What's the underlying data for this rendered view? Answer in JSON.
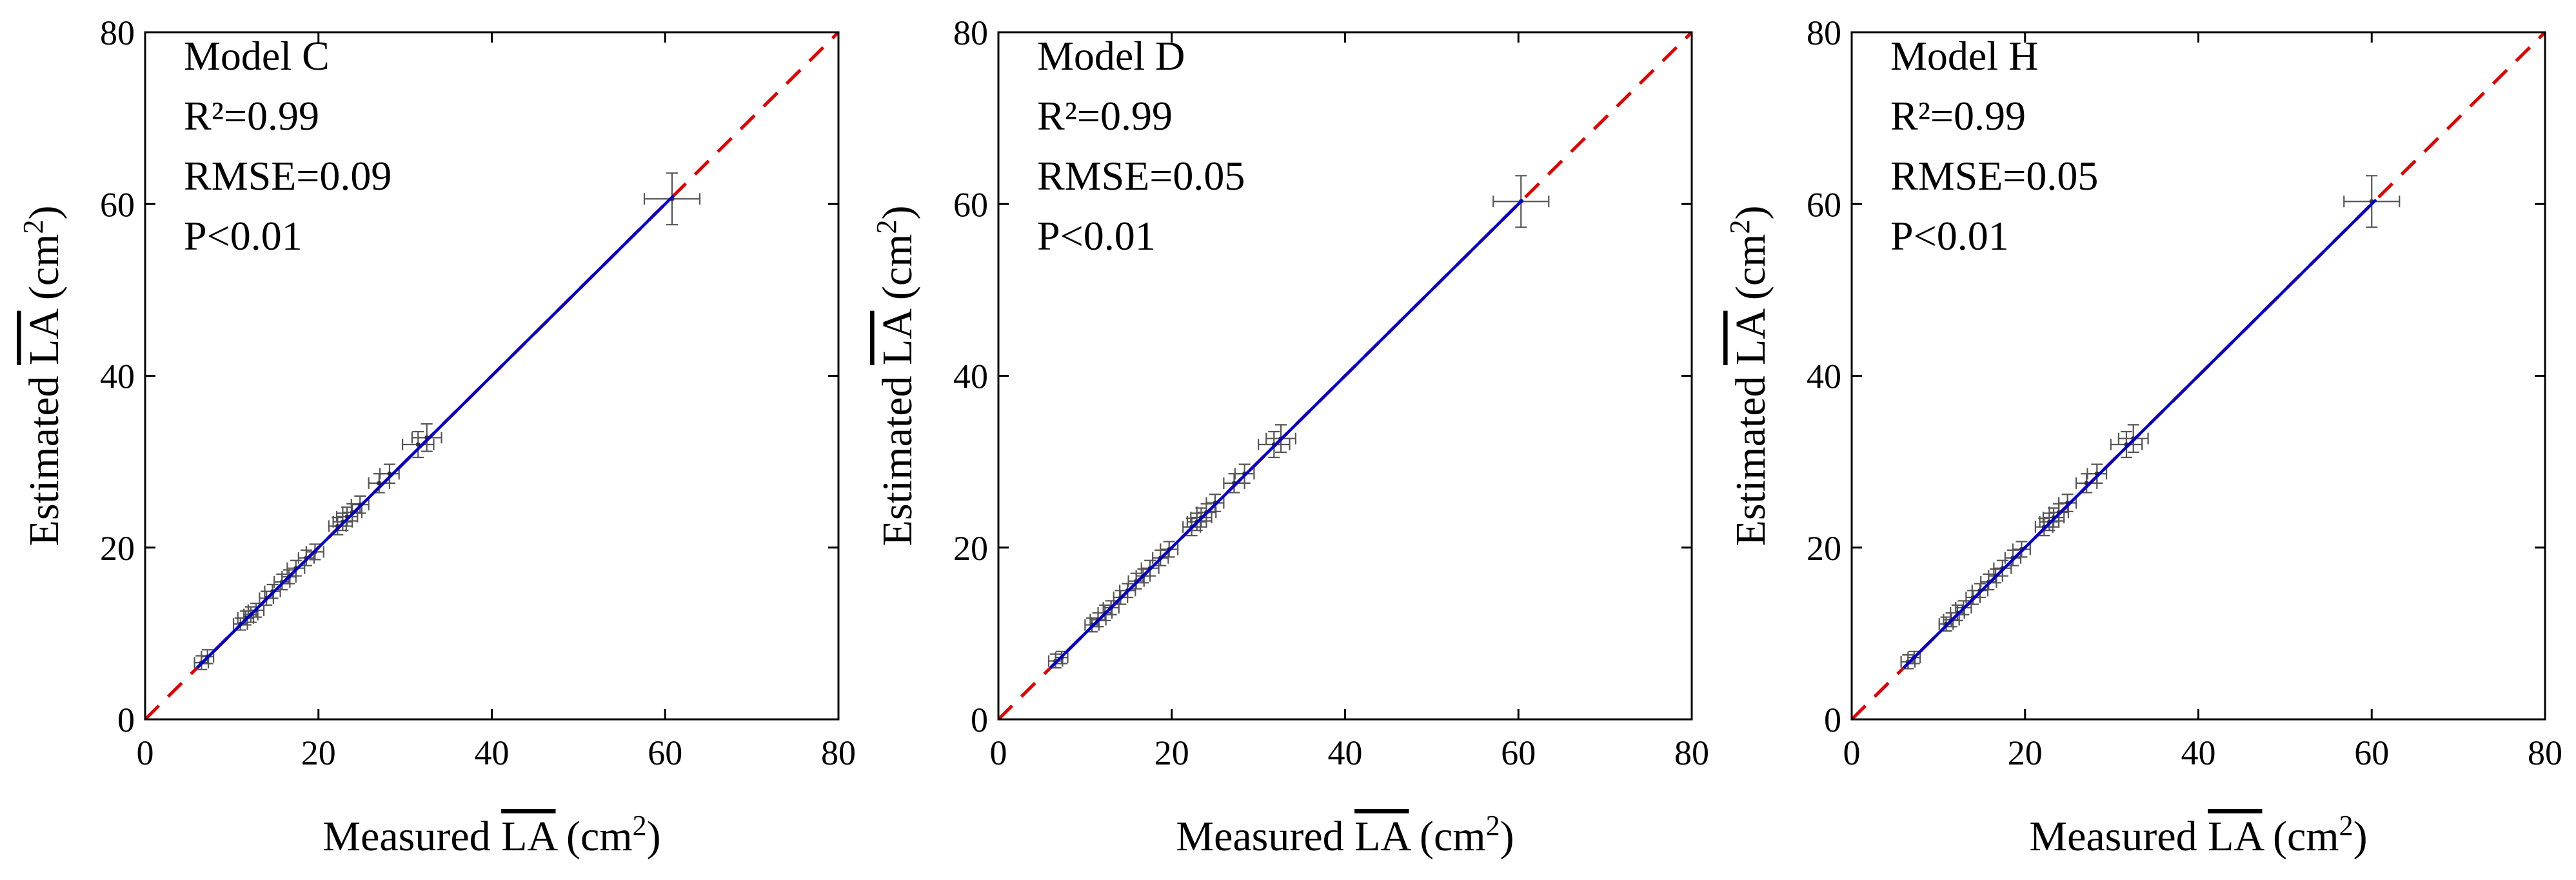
{
  "chart_data": [
    {
      "type": "scatter",
      "panel": "left",
      "annotations": [
        "Model C",
        "R²=0.99",
        "RMSE=0.09",
        "P<0.01"
      ],
      "xlabel": {
        "main": "Measured ",
        "overlined": "LA",
        "unit_pre": " (cm",
        "unit_sup": "2",
        "unit_post": ")"
      },
      "ylabel": {
        "main": "Estimated ",
        "overlined": "LA",
        "unit_pre": " (cm",
        "unit_sup": "2",
        "unit_post": ")"
      },
      "xlim": [
        0,
        80
      ],
      "ylim": [
        0,
        80
      ],
      "xticks": [
        0,
        20,
        40,
        60,
        80
      ],
      "yticks": [
        0,
        20,
        40,
        60,
        80
      ],
      "tick_labels": [
        "0",
        "20",
        "40",
        "60",
        "80"
      ],
      "reference_line": {
        "style": "dashed",
        "color": "#e00000",
        "from": [
          0,
          0
        ],
        "to": [
          80,
          80
        ]
      },
      "fit_line": {
        "color": "#0000cc",
        "from": [
          6,
          6
        ],
        "to": [
          61,
          61
        ]
      },
      "points": [
        {
          "x": 6.5,
          "y": 6.6,
          "xerr": 0.8,
          "yerr": 0.8
        },
        {
          "x": 7.2,
          "y": 7.3,
          "xerr": 0.7,
          "yerr": 0.8
        },
        {
          "x": 11.0,
          "y": 11.1,
          "xerr": 0.8,
          "yerr": 0.7
        },
        {
          "x": 11.6,
          "y": 11.8,
          "xerr": 0.9,
          "yerr": 0.8
        },
        {
          "x": 12.2,
          "y": 12.2,
          "xerr": 0.8,
          "yerr": 0.9
        },
        {
          "x": 12.8,
          "y": 12.7,
          "xerr": 0.9,
          "yerr": 0.8
        },
        {
          "x": 14.0,
          "y": 14.1,
          "xerr": 0.8,
          "yerr": 0.8
        },
        {
          "x": 14.7,
          "y": 14.9,
          "xerr": 0.9,
          "yerr": 0.8
        },
        {
          "x": 15.8,
          "y": 16.0,
          "xerr": 0.9,
          "yerr": 0.9
        },
        {
          "x": 16.6,
          "y": 16.6,
          "xerr": 0.8,
          "yerr": 0.8
        },
        {
          "x": 17.4,
          "y": 17.6,
          "xerr": 1.0,
          "yerr": 0.9
        },
        {
          "x": 18.6,
          "y": 18.8,
          "xerr": 0.9,
          "yerr": 0.9
        },
        {
          "x": 19.6,
          "y": 19.5,
          "xerr": 1.0,
          "yerr": 0.9
        },
        {
          "x": 22.2,
          "y": 22.5,
          "xerr": 1.0,
          "yerr": 1.0
        },
        {
          "x": 22.8,
          "y": 23.0,
          "xerr": 1.1,
          "yerr": 1.0
        },
        {
          "x": 23.3,
          "y": 23.6,
          "xerr": 1.2,
          "yerr": 1.1
        },
        {
          "x": 23.9,
          "y": 24.1,
          "xerr": 1.1,
          "yerr": 1.0
        },
        {
          "x": 24.8,
          "y": 25.0,
          "xerr": 1.0,
          "yerr": 1.0
        },
        {
          "x": 27.0,
          "y": 27.5,
          "xerr": 1.2,
          "yerr": 1.1
        },
        {
          "x": 28.2,
          "y": 28.6,
          "xerr": 1.1,
          "yerr": 1.1
        },
        {
          "x": 31.5,
          "y": 32.0,
          "xerr": 1.8,
          "yerr": 1.5
        },
        {
          "x": 32.5,
          "y": 32.8,
          "xerr": 1.7,
          "yerr": 1.6
        },
        {
          "x": 60.8,
          "y": 60.6,
          "xerr": 3.2,
          "yerr": 3.0
        }
      ]
    },
    {
      "type": "scatter",
      "panel": "middle",
      "annotations": [
        "Model D",
        "R²=0.99",
        "RMSE=0.05",
        "P<0.01"
      ],
      "xlabel": {
        "main": "Measured ",
        "overlined": "LA",
        "unit_pre": " (cm",
        "unit_sup": "2",
        "unit_post": ")"
      },
      "ylabel": {
        "main": "Estimated ",
        "overlined": "LA",
        "unit_pre": " (cm",
        "unit_sup": "2",
        "unit_post": ")"
      },
      "xlim": [
        0,
        80
      ],
      "ylim": [
        0,
        80
      ],
      "xticks": [
        0,
        20,
        40,
        60,
        80
      ],
      "yticks": [
        0,
        20,
        40,
        60,
        80
      ],
      "tick_labels": [
        "0",
        "20",
        "40",
        "60",
        "80"
      ],
      "reference_line": {
        "style": "dashed",
        "color": "#e00000",
        "from": [
          0,
          0
        ],
        "to": [
          80,
          80
        ]
      },
      "fit_line": {
        "color": "#0000cc",
        "from": [
          6,
          6
        ],
        "to": [
          60.5,
          60.5
        ]
      },
      "points": [
        {
          "x": 6.6,
          "y": 6.8,
          "xerr": 0.8,
          "yerr": 0.8
        },
        {
          "x": 7.3,
          "y": 7.2,
          "xerr": 0.7,
          "yerr": 0.7
        },
        {
          "x": 10.8,
          "y": 11.0,
          "xerr": 0.8,
          "yerr": 0.8
        },
        {
          "x": 11.5,
          "y": 11.6,
          "xerr": 0.9,
          "yerr": 0.8
        },
        {
          "x": 12.3,
          "y": 12.4,
          "xerr": 0.8,
          "yerr": 0.9
        },
        {
          "x": 13.0,
          "y": 13.0,
          "xerr": 0.9,
          "yerr": 0.8
        },
        {
          "x": 14.1,
          "y": 14.2,
          "xerr": 0.8,
          "yerr": 0.8
        },
        {
          "x": 14.9,
          "y": 15.0,
          "xerr": 0.9,
          "yerr": 0.8
        },
        {
          "x": 15.9,
          "y": 16.1,
          "xerr": 0.9,
          "yerr": 0.9
        },
        {
          "x": 16.7,
          "y": 16.7,
          "xerr": 0.8,
          "yerr": 0.8
        },
        {
          "x": 17.5,
          "y": 17.6,
          "xerr": 1.0,
          "yerr": 0.9
        },
        {
          "x": 18.7,
          "y": 18.8,
          "xerr": 0.9,
          "yerr": 0.9
        },
        {
          "x": 19.7,
          "y": 19.8,
          "xerr": 1.0,
          "yerr": 0.9
        },
        {
          "x": 22.3,
          "y": 22.4,
          "xerr": 1.0,
          "yerr": 1.0
        },
        {
          "x": 22.9,
          "y": 23.0,
          "xerr": 1.1,
          "yerr": 1.0
        },
        {
          "x": 23.4,
          "y": 23.5,
          "xerr": 1.2,
          "yerr": 1.1
        },
        {
          "x": 24.0,
          "y": 24.1,
          "xerr": 1.1,
          "yerr": 1.0
        },
        {
          "x": 25.0,
          "y": 25.2,
          "xerr": 1.0,
          "yerr": 1.0
        },
        {
          "x": 27.2,
          "y": 27.5,
          "xerr": 1.2,
          "yerr": 1.1
        },
        {
          "x": 28.4,
          "y": 28.6,
          "xerr": 1.1,
          "yerr": 1.1
        },
        {
          "x": 31.8,
          "y": 32.0,
          "xerr": 1.8,
          "yerr": 1.5
        },
        {
          "x": 32.6,
          "y": 32.7,
          "xerr": 1.7,
          "yerr": 1.6
        },
        {
          "x": 60.3,
          "y": 60.3,
          "xerr": 3.2,
          "yerr": 3.0
        }
      ]
    },
    {
      "type": "scatter",
      "panel": "right",
      "annotations": [
        "Model H",
        "R²=0.99",
        "RMSE=0.05",
        "P<0.01"
      ],
      "xlabel": {
        "main": "Measured ",
        "overlined": "LA",
        "unit_pre": " (cm",
        "unit_sup": "2",
        "unit_post": ")"
      },
      "ylabel": {
        "main": "Estimated ",
        "overlined": "LA",
        "unit_pre": " (cm",
        "unit_sup": "2",
        "unit_post": ")"
      },
      "xlim": [
        0,
        80
      ],
      "ylim": [
        0,
        80
      ],
      "xticks": [
        0,
        20,
        40,
        60,
        80
      ],
      "yticks": [
        0,
        20,
        40,
        60,
        80
      ],
      "tick_labels": [
        "0",
        "20",
        "40",
        "60",
        "80"
      ],
      "reference_line": {
        "style": "dashed",
        "color": "#e00000",
        "from": [
          0,
          0
        ],
        "to": [
          80,
          80
        ]
      },
      "fit_line": {
        "color": "#0000cc",
        "from": [
          6,
          6
        ],
        "to": [
          60.5,
          60.5
        ]
      },
      "points": [
        {
          "x": 6.5,
          "y": 6.7,
          "xerr": 0.8,
          "yerr": 0.8
        },
        {
          "x": 7.2,
          "y": 7.2,
          "xerr": 0.7,
          "yerr": 0.7
        },
        {
          "x": 10.9,
          "y": 11.1,
          "xerr": 0.8,
          "yerr": 0.8
        },
        {
          "x": 11.5,
          "y": 11.6,
          "xerr": 0.9,
          "yerr": 0.8
        },
        {
          "x": 12.2,
          "y": 12.4,
          "xerr": 0.8,
          "yerr": 0.9
        },
        {
          "x": 12.9,
          "y": 13.0,
          "xerr": 0.9,
          "yerr": 0.8
        },
        {
          "x": 14.0,
          "y": 14.2,
          "xerr": 0.8,
          "yerr": 0.8
        },
        {
          "x": 14.8,
          "y": 15.0,
          "xerr": 0.9,
          "yerr": 0.8
        },
        {
          "x": 15.8,
          "y": 16.0,
          "xerr": 0.9,
          "yerr": 0.9
        },
        {
          "x": 16.6,
          "y": 16.7,
          "xerr": 0.8,
          "yerr": 0.8
        },
        {
          "x": 17.4,
          "y": 17.6,
          "xerr": 1.0,
          "yerr": 0.9
        },
        {
          "x": 18.6,
          "y": 18.8,
          "xerr": 0.9,
          "yerr": 0.9
        },
        {
          "x": 19.6,
          "y": 19.8,
          "xerr": 1.0,
          "yerr": 0.9
        },
        {
          "x": 22.2,
          "y": 22.4,
          "xerr": 1.0,
          "yerr": 1.0
        },
        {
          "x": 22.8,
          "y": 23.0,
          "xerr": 1.1,
          "yerr": 1.0
        },
        {
          "x": 23.3,
          "y": 23.5,
          "xerr": 1.2,
          "yerr": 1.1
        },
        {
          "x": 23.9,
          "y": 24.1,
          "xerr": 1.1,
          "yerr": 1.0
        },
        {
          "x": 24.9,
          "y": 25.2,
          "xerr": 1.0,
          "yerr": 1.0
        },
        {
          "x": 27.1,
          "y": 27.5,
          "xerr": 1.2,
          "yerr": 1.1
        },
        {
          "x": 28.3,
          "y": 28.6,
          "xerr": 1.1,
          "yerr": 1.1
        },
        {
          "x": 31.7,
          "y": 32.0,
          "xerr": 1.8,
          "yerr": 1.5
        },
        {
          "x": 32.5,
          "y": 32.7,
          "xerr": 1.7,
          "yerr": 1.6
        },
        {
          "x": 60.0,
          "y": 60.3,
          "xerr": 3.2,
          "yerr": 3.0
        }
      ]
    }
  ]
}
